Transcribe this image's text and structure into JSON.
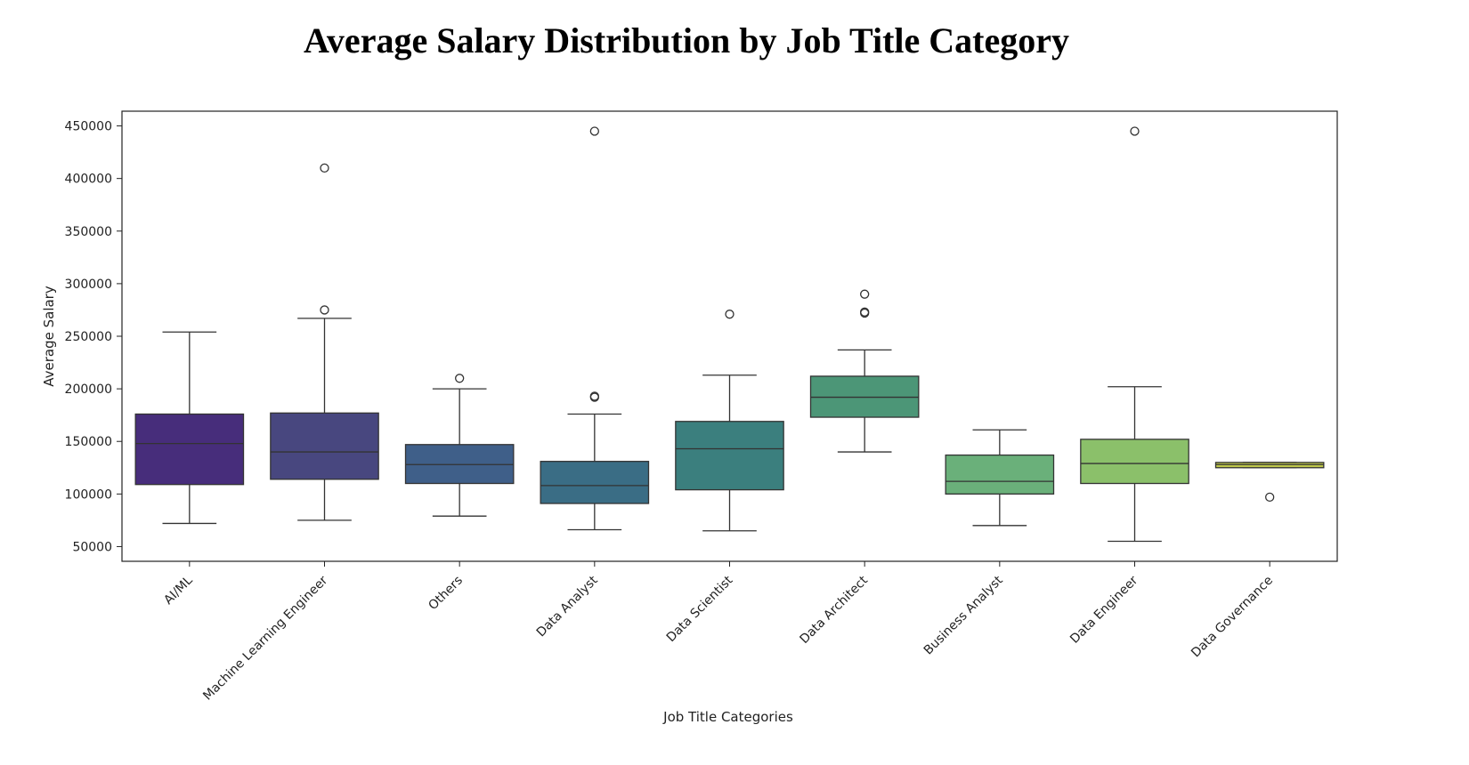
{
  "page": {
    "title": "Average Salary Distribution by Job Title Category"
  },
  "chart_data": {
    "type": "box",
    "title": "",
    "xlabel": "Job Title Categories",
    "ylabel": "Average Salary",
    "ylim": [
      36000,
      464000
    ],
    "yticks": [
      50000,
      100000,
      150000,
      200000,
      250000,
      300000,
      350000,
      400000,
      450000
    ],
    "grid": false,
    "legend": "none",
    "categories": [
      {
        "name": "AI/ML",
        "whisker_low": 72000,
        "q1": 109000,
        "median": 148000,
        "q3": 176000,
        "whisker_high": 254000,
        "outliers": [],
        "color": "#472d7b"
      },
      {
        "name": "Machine Learning Engineer",
        "whisker_low": 75000,
        "q1": 114000,
        "median": 140000,
        "q3": 177000,
        "whisker_high": 267000,
        "outliers": [
          275000,
          410000
        ],
        "color": "#48477f"
      },
      {
        "name": "Others",
        "whisker_low": 79000,
        "q1": 110000,
        "median": 128000,
        "q3": 147000,
        "whisker_high": 200000,
        "outliers": [
          210000
        ],
        "color": "#3f5f89"
      },
      {
        "name": "Data Analyst",
        "whisker_low": 66000,
        "q1": 91000,
        "median": 108000,
        "q3": 131000,
        "whisker_high": 176000,
        "outliers": [
          192000,
          193000,
          445000
        ],
        "color": "#3a6d85"
      },
      {
        "name": "Data Scientist",
        "whisker_low": 65000,
        "q1": 104000,
        "median": 143000,
        "q3": 169000,
        "whisker_high": 213000,
        "outliers": [
          271000
        ],
        "color": "#3b7f7e"
      },
      {
        "name": "Data Architect",
        "whisker_low": 140000,
        "q1": 173000,
        "median": 192000,
        "q3": 212000,
        "whisker_high": 237000,
        "outliers": [
          272000,
          273000,
          290000
        ],
        "color": "#4c9677"
      },
      {
        "name": "Business Analyst",
        "whisker_low": 70000,
        "q1": 100000,
        "median": 112000,
        "q3": 137000,
        "whisker_high": 161000,
        "outliers": [],
        "color": "#6ab07a"
      },
      {
        "name": "Data Engineer",
        "whisker_low": 55000,
        "q1": 110000,
        "median": 129000,
        "q3": 152000,
        "whisker_high": 202000,
        "outliers": [
          445000
        ],
        "color": "#8bc06a"
      },
      {
        "name": "Data Governance",
        "whisker_low": 125000,
        "q1": 125000,
        "median": 128000,
        "q3": 130000,
        "whisker_high": 130000,
        "outliers": [
          97000
        ],
        "color": "#c0c94a"
      }
    ]
  }
}
